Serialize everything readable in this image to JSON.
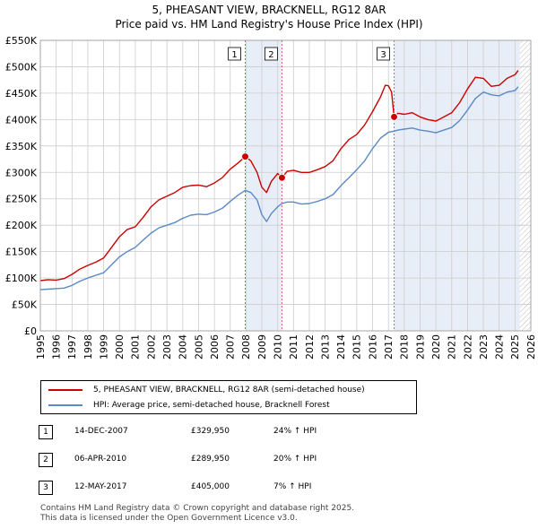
{
  "title_line1": "5, PHEASANT VIEW, BRACKNELL, RG12 8AR",
  "title_line2": "Price paid vs. HM Land Registry's House Price Index (HPI)",
  "colors": {
    "property": "#cc0000",
    "hpi": "#5b8ac6",
    "shade": "#e8eef8",
    "vline": "#e06060",
    "grid": "#cccccc"
  },
  "chart_data": {
    "type": "line",
    "x_range": [
      1995,
      2026
    ],
    "y_range": [
      0,
      550000
    ],
    "x_ticks": [
      1995,
      1996,
      1997,
      1998,
      1999,
      2000,
      2001,
      2002,
      2003,
      2004,
      2005,
      2006,
      2007,
      2008,
      2009,
      2010,
      2011,
      2012,
      2013,
      2014,
      2015,
      2016,
      2017,
      2018,
      2019,
      2020,
      2021,
      2022,
      2023,
      2024,
      2025,
      2026
    ],
    "y_ticks": [
      {
        "value": 0,
        "label": "£0"
      },
      {
        "value": 50000,
        "label": "£50K"
      },
      {
        "value": 100000,
        "label": "£100K"
      },
      {
        "value": 150000,
        "label": "£150K"
      },
      {
        "value": 200000,
        "label": "£200K"
      },
      {
        "value": 250000,
        "label": "£250K"
      },
      {
        "value": 300000,
        "label": "£300K"
      },
      {
        "value": 350000,
        "label": "£350K"
      },
      {
        "value": 400000,
        "label": "£400K"
      },
      {
        "value": 450000,
        "label": "£450K"
      },
      {
        "value": 500000,
        "label": "£500K"
      },
      {
        "value": 550000,
        "label": "£550K"
      }
    ],
    "shaded_ranges": [
      [
        2007.95,
        2010.27
      ],
      [
        2017.36,
        2025.3
      ]
    ],
    "future_hatch_from": 2025.3,
    "series": [
      {
        "name": "5, PHEASANT VIEW, BRACKNELL, RG12 8AR (semi-detached house)",
        "points": [
          [
            1995,
            95000
          ],
          [
            1995.5,
            97000
          ],
          [
            1996,
            96000
          ],
          [
            1996.5,
            99000
          ],
          [
            1997,
            107000
          ],
          [
            1997.5,
            117000
          ],
          [
            1998,
            124000
          ],
          [
            1998.5,
            130000
          ],
          [
            1999,
            138000
          ],
          [
            1999.5,
            158000
          ],
          [
            2000,
            178000
          ],
          [
            2000.5,
            192000
          ],
          [
            2001,
            197000
          ],
          [
            2001.5,
            215000
          ],
          [
            2002,
            235000
          ],
          [
            2002.5,
            248000
          ],
          [
            2003,
            255000
          ],
          [
            2003.5,
            262000
          ],
          [
            2004,
            272000
          ],
          [
            2004.5,
            275000
          ],
          [
            2005,
            276000
          ],
          [
            2005.5,
            273000
          ],
          [
            2006,
            280000
          ],
          [
            2006.5,
            290000
          ],
          [
            2007,
            306000
          ],
          [
            2007.5,
            318000
          ],
          [
            2007.95,
            329950
          ],
          [
            2008.3,
            322000
          ],
          [
            2008.7,
            300000
          ],
          [
            2009,
            272000
          ],
          [
            2009.3,
            262000
          ],
          [
            2009.6,
            283000
          ],
          [
            2010,
            298000
          ],
          [
            2010.27,
            289950
          ],
          [
            2010.6,
            302000
          ],
          [
            2011,
            304000
          ],
          [
            2011.5,
            300000
          ],
          [
            2012,
            300000
          ],
          [
            2012.5,
            305000
          ],
          [
            2013,
            311000
          ],
          [
            2013.5,
            322000
          ],
          [
            2014,
            345000
          ],
          [
            2014.5,
            362000
          ],
          [
            2015,
            372000
          ],
          [
            2015.5,
            390000
          ],
          [
            2016,
            415000
          ],
          [
            2016.5,
            443000
          ],
          [
            2016.8,
            465000
          ],
          [
            2017,
            464000
          ],
          [
            2017.2,
            452000
          ],
          [
            2017.36,
            405000
          ],
          [
            2017.6,
            412000
          ],
          [
            2018,
            410000
          ],
          [
            2018.5,
            413000
          ],
          [
            2019,
            405000
          ],
          [
            2019.5,
            400000
          ],
          [
            2020,
            397000
          ],
          [
            2020.5,
            405000
          ],
          [
            2021,
            413000
          ],
          [
            2021.5,
            432000
          ],
          [
            2022,
            458000
          ],
          [
            2022.5,
            480000
          ],
          [
            2023,
            478000
          ],
          [
            2023.5,
            463000
          ],
          [
            2024,
            465000
          ],
          [
            2024.5,
            478000
          ],
          [
            2025,
            485000
          ],
          [
            2025.2,
            493000
          ]
        ]
      },
      {
        "name": "HPI: Average price, semi-detached house, Bracknell Forest",
        "points": [
          [
            1995,
            78000
          ],
          [
            1995.5,
            79000
          ],
          [
            1996,
            80000
          ],
          [
            1996.5,
            81000
          ],
          [
            1997,
            86000
          ],
          [
            1997.5,
            94000
          ],
          [
            1998,
            100000
          ],
          [
            1998.5,
            105000
          ],
          [
            1999,
            110000
          ],
          [
            1999.5,
            125000
          ],
          [
            2000,
            140000
          ],
          [
            2000.5,
            150000
          ],
          [
            2001,
            158000
          ],
          [
            2001.5,
            172000
          ],
          [
            2002,
            185000
          ],
          [
            2002.5,
            195000
          ],
          [
            2003,
            200000
          ],
          [
            2003.5,
            205000
          ],
          [
            2004,
            213000
          ],
          [
            2004.5,
            219000
          ],
          [
            2005,
            221000
          ],
          [
            2005.5,
            220000
          ],
          [
            2006,
            225000
          ],
          [
            2006.5,
            232000
          ],
          [
            2007,
            245000
          ],
          [
            2007.5,
            257000
          ],
          [
            2007.95,
            266000
          ],
          [
            2008.3,
            262000
          ],
          [
            2008.7,
            248000
          ],
          [
            2009,
            220000
          ],
          [
            2009.3,
            207000
          ],
          [
            2009.6,
            222000
          ],
          [
            2010,
            235000
          ],
          [
            2010.27,
            241000
          ],
          [
            2010.6,
            244000
          ],
          [
            2011,
            244000
          ],
          [
            2011.5,
            240000
          ],
          [
            2012,
            241000
          ],
          [
            2012.5,
            245000
          ],
          [
            2013,
            250000
          ],
          [
            2013.5,
            258000
          ],
          [
            2014,
            275000
          ],
          [
            2014.5,
            290000
          ],
          [
            2015,
            305000
          ],
          [
            2015.5,
            322000
          ],
          [
            2016,
            345000
          ],
          [
            2016.5,
            365000
          ],
          [
            2017,
            376000
          ],
          [
            2017.36,
            378000
          ],
          [
            2017.6,
            380000
          ],
          [
            2018,
            382000
          ],
          [
            2018.5,
            384000
          ],
          [
            2019,
            380000
          ],
          [
            2019.5,
            378000
          ],
          [
            2020,
            375000
          ],
          [
            2020.5,
            380000
          ],
          [
            2021,
            385000
          ],
          [
            2021.5,
            398000
          ],
          [
            2022,
            418000
          ],
          [
            2022.5,
            440000
          ],
          [
            2023,
            452000
          ],
          [
            2023.5,
            447000
          ],
          [
            2024,
            445000
          ],
          [
            2024.5,
            452000
          ],
          [
            2025,
            455000
          ],
          [
            2025.2,
            462000
          ]
        ]
      }
    ],
    "markers": [
      {
        "label": "1",
        "x": 2007.95,
        "y": 329950
      },
      {
        "label": "2",
        "x": 2010.27,
        "y": 289950
      },
      {
        "label": "3",
        "x": 2017.36,
        "y": 405000
      }
    ]
  },
  "legend": {
    "property_label": "5, PHEASANT VIEW, BRACKNELL, RG12 8AR (semi-detached house)",
    "hpi_label": "HPI: Average price, semi-detached house, Bracknell Forest"
  },
  "transactions": [
    {
      "num": "1",
      "date": "14-DEC-2007",
      "price": "£329,950",
      "hpi": "24% ↑ HPI"
    },
    {
      "num": "2",
      "date": "06-APR-2010",
      "price": "£289,950",
      "hpi": "20% ↑ HPI"
    },
    {
      "num": "3",
      "date": "12-MAY-2017",
      "price": "£405,000",
      "hpi": "7% ↑ HPI"
    }
  ],
  "footer_line1": "Contains HM Land Registry data © Crown copyright and database right 2025.",
  "footer_line2": "This data is licensed under the Open Government Licence v3.0."
}
